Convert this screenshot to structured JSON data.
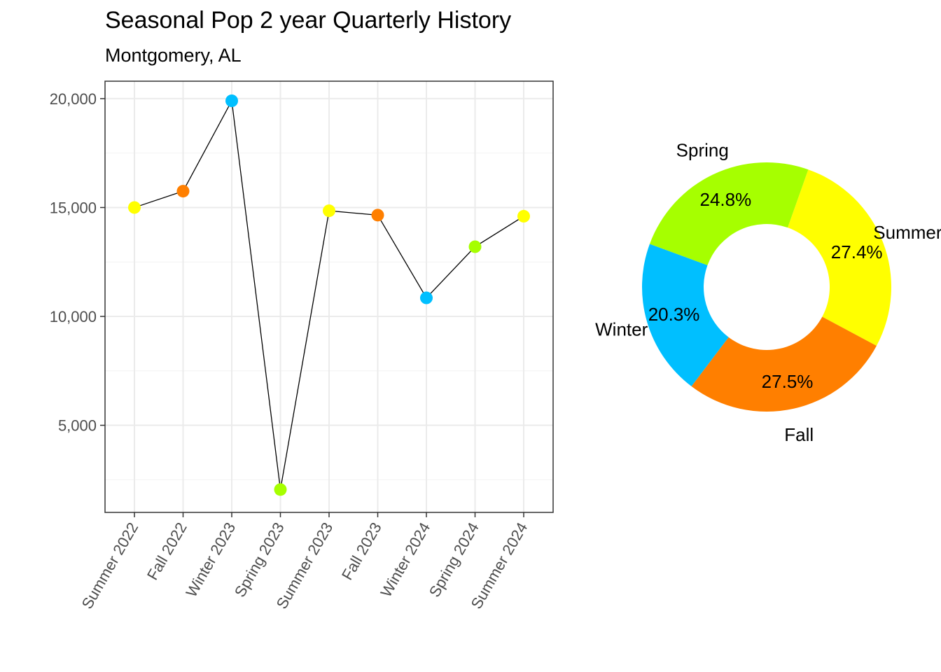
{
  "title": "Seasonal Pop 2 year Quarterly History",
  "subtitle": "Montgomery, AL",
  "colors": {
    "Summer": "#FFFF00",
    "Fall": "#FF7F00",
    "Winter": "#00BFFF",
    "Spring": "#A6FF00"
  },
  "chart_data": [
    {
      "type": "line",
      "categories": [
        "Summer 2022",
        "Fall 2022",
        "Winter 2023",
        "Spring 2023",
        "Summer 2023",
        "Fall 2023",
        "Winter 2024",
        "Spring 2024",
        "Summer 2024"
      ],
      "values": [
        15000,
        15750,
        19900,
        2050,
        14850,
        14650,
        10850,
        13200,
        14600
      ],
      "seasons": [
        "Summer",
        "Fall",
        "Winter",
        "Spring",
        "Summer",
        "Fall",
        "Winter",
        "Spring",
        "Summer"
      ],
      "yticks": [
        5000,
        10000,
        15000,
        20000
      ],
      "ytick_labels": [
        "5,000",
        "10,000",
        "15,000",
        "20,000"
      ],
      "ylim": [
        1000,
        20800
      ],
      "grid": true,
      "legend": "none"
    },
    {
      "type": "pie",
      "style": "donut",
      "slices": [
        {
          "label": "Summer",
          "percent": 27.4,
          "pct_label": "27.4%"
        },
        {
          "label": "Fall",
          "percent": 27.5,
          "pct_label": "27.5%"
        },
        {
          "label": "Winter",
          "percent": 20.3,
          "pct_label": "20.3%"
        },
        {
          "label": "Spring",
          "percent": 24.8,
          "pct_label": "24.8%"
        }
      ]
    }
  ]
}
